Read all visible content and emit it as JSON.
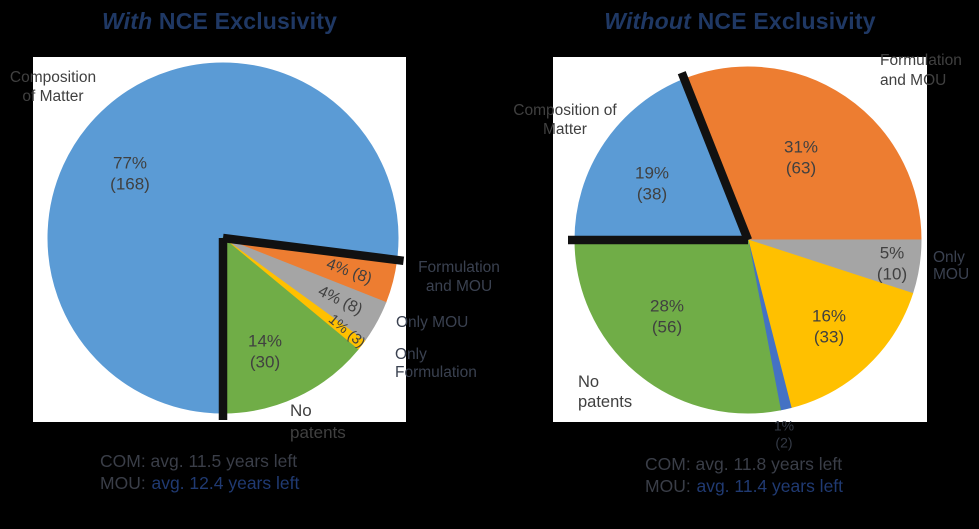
{
  "colors": {
    "background": "#000000",
    "panel": "#ffffff",
    "title_navy": "#1f3864",
    "label_dark": "#404040",
    "label_outside": "#3a4150",
    "caption_navy": "#203a72",
    "highlight_border": "#111111",
    "blue": "#5B9BD5",
    "orange": "#ED7D31",
    "gray": "#A5A5A5",
    "yellow": "#FFC000",
    "green": "#70AD47",
    "royal_blue": "#4472C4"
  },
  "left": {
    "title": {
      "italic": "With",
      "rest": " NCE Exclusivity"
    },
    "labels": {
      "com_l1": "Composition",
      "com_l2": "of Matter",
      "com_pct": "77%",
      "com_n": "(168)",
      "fm_inline": "4% (8)",
      "om_inline": "4% (8)",
      "of_inline": "1% (3)",
      "np_pct": "14%",
      "np_n": "(30)",
      "np_l1": "No",
      "np_l2": "patents",
      "fm_l1": "Formulation",
      "fm_l2": "and MOU",
      "om_out": "Only MOU",
      "of_l1": "Only",
      "of_l2": "Formulation"
    },
    "caption": {
      "line1": "COM: avg. 11.5 years left",
      "line2_prefix": "MOU:",
      "line2_value": "avg. 12.4 years left"
    }
  },
  "right": {
    "title": {
      "italic": "Without",
      "rest": " NCE Exclusivity"
    },
    "labels": {
      "com_l1": "Composition of",
      "com_l2": "Matter",
      "com_pct": "19%",
      "com_n": "(38)",
      "fm_pct": "31%",
      "fm_n": "(63)",
      "om_pct": "5%",
      "om_n": "(10)",
      "of_pct": "16%",
      "of_n": "(33)",
      "np_pct": "28%",
      "np_n": "(56)",
      "np_l1": "No",
      "np_l2": "patents",
      "fm_l1": "Formulation",
      "fm_l2": "and MOU",
      "om_l1": "Only",
      "om_l2": "MOU",
      "other_pct": "1%",
      "other_n": "(2)"
    },
    "caption": {
      "line1": "COM: avg. 11.8 years left",
      "line2_prefix": "MOU:",
      "line2_value": "avg. 11.4 years left"
    }
  },
  "chart_data": [
    {
      "type": "pie",
      "title": "With NCE Exclusivity",
      "rotation_deg": 180,
      "com_avg_years_left": 11.5,
      "mou_avg_years_left": 12.4,
      "slices": [
        {
          "category": "Composition of Matter",
          "pct": 77,
          "count": 168,
          "color": "#5B9BD5",
          "outlined": true
        },
        {
          "category": "Formulation and MOU",
          "pct": 4,
          "count": 8,
          "color": "#ED7D31"
        },
        {
          "category": "Only MOU",
          "pct": 4,
          "count": 8,
          "color": "#A5A5A5"
        },
        {
          "category": "Only Formulation",
          "pct": 1,
          "count": 3,
          "color": "#FFC000"
        },
        {
          "category": "No patents",
          "pct": 14,
          "count": 30,
          "color": "#70AD47"
        }
      ]
    },
    {
      "type": "pie",
      "title": "Without NCE Exclusivity",
      "rotation_deg": 270,
      "com_avg_years_left": 11.8,
      "mou_avg_years_left": 11.4,
      "slices": [
        {
          "category": "Composition of Matter",
          "pct": 19,
          "count": 38,
          "color": "#5B9BD5",
          "outlined": true
        },
        {
          "category": "Formulation and MOU",
          "pct": 31,
          "count": 63,
          "color": "#ED7D31"
        },
        {
          "category": "Only MOU",
          "pct": 5,
          "count": 10,
          "color": "#A5A5A5"
        },
        {
          "category": "Only Formulation",
          "pct": 16,
          "count": 33,
          "color": "#FFC000"
        },
        {
          "category": "",
          "pct": 1,
          "count": 2,
          "color": "#4472C4"
        },
        {
          "category": "No patents",
          "pct": 28,
          "count": 56,
          "color": "#70AD47"
        }
      ]
    }
  ]
}
